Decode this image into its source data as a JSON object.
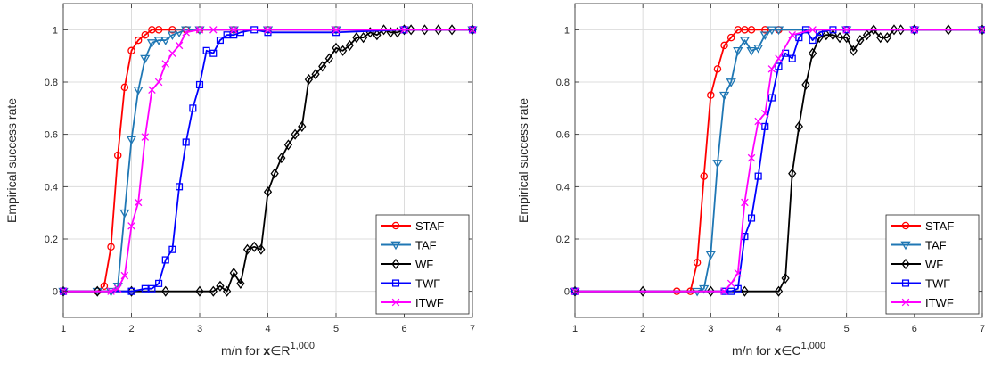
{
  "colors": {
    "STAF": "#ff0000",
    "TAF": "#1f77b4",
    "WF": "#000000",
    "TWF": "#0000ff",
    "ITWF": "#ff00ff"
  },
  "chart_data": [
    {
      "type": "line",
      "ylabel": "Empirical success rate",
      "xlabel_prefix": "m/n for ",
      "xlabel_var": "x",
      "xlabel_set": "∈R",
      "xlabel_sup": "1,000",
      "xlim": [
        1,
        7
      ],
      "ylim": [
        -0.1,
        1.1
      ],
      "xticks": [
        "1",
        "2",
        "3",
        "4",
        "5",
        "6",
        "7"
      ],
      "yticks": [
        "0",
        "0.2",
        "0.4",
        "0.6",
        "0.8",
        "1"
      ],
      "grid": true,
      "legend_position": "bottom-right",
      "series": [
        {
          "name": "STAF",
          "marker": "circle",
          "x": [
            1,
            1.5,
            1.6,
            1.7,
            1.8,
            1.9,
            2.0,
            2.1,
            2.2,
            2.3,
            2.4,
            2.6,
            2.8,
            3.0,
            3.5,
            4,
            5,
            6,
            7
          ],
          "y": [
            0,
            0,
            0.02,
            0.17,
            0.52,
            0.78,
            0.92,
            0.96,
            0.98,
            1,
            1,
            1,
            1,
            1,
            1,
            1,
            1,
            1,
            1
          ]
        },
        {
          "name": "TAF",
          "marker": "triangle",
          "x": [
            1,
            1.5,
            1.7,
            1.8,
            1.9,
            2.0,
            2.1,
            2.2,
            2.3,
            2.4,
            2.5,
            2.6,
            2.7,
            2.8,
            3.0,
            3.5,
            4,
            5,
            6,
            7
          ],
          "y": [
            0,
            0,
            0,
            0.02,
            0.3,
            0.58,
            0.77,
            0.89,
            0.95,
            0.96,
            0.96,
            0.98,
            0.99,
            1,
            1,
            1,
            1,
            1,
            1,
            1
          ]
        },
        {
          "name": "WF",
          "marker": "diamond",
          "x": [
            1,
            1.5,
            2,
            2.5,
            3.0,
            3.2,
            3.3,
            3.4,
            3.5,
            3.6,
            3.7,
            3.8,
            3.9,
            4.0,
            4.1,
            4.2,
            4.3,
            4.4,
            4.5,
            4.6,
            4.7,
            4.8,
            4.9,
            5.0,
            5.1,
            5.2,
            5.3,
            5.4,
            5.5,
            5.6,
            5.7,
            5.8,
            5.9,
            6.0,
            6.1,
            6.3,
            6.5,
            6.7,
            7.0
          ],
          "y": [
            0,
            0,
            0,
            0,
            0,
            0,
            0.02,
            0,
            0.07,
            0.03,
            0.16,
            0.17,
            0.16,
            0.38,
            0.45,
            0.51,
            0.56,
            0.6,
            0.63,
            0.81,
            0.83,
            0.86,
            0.89,
            0.93,
            0.92,
            0.94,
            0.97,
            0.97,
            0.99,
            0.98,
            1,
            0.99,
            0.99,
            1,
            1,
            1,
            1,
            1,
            1
          ]
        },
        {
          "name": "TWF",
          "marker": "square",
          "x": [
            1,
            2.0,
            2.2,
            2.3,
            2.4,
            2.5,
            2.6,
            2.7,
            2.8,
            2.9,
            3.0,
            3.1,
            3.2,
            3.3,
            3.4,
            3.5,
            3.6,
            3.8,
            4.0,
            5,
            6,
            7
          ],
          "y": [
            0,
            0,
            0.01,
            0.01,
            0.03,
            0.12,
            0.16,
            0.4,
            0.57,
            0.7,
            0.79,
            0.92,
            0.91,
            0.96,
            0.98,
            0.98,
            0.99,
            1,
            0.99,
            0.99,
            1,
            1
          ]
        },
        {
          "name": "ITWF",
          "marker": "x",
          "x": [
            1,
            1.7,
            1.8,
            1.9,
            2.0,
            2.1,
            2.2,
            2.3,
            2.4,
            2.5,
            2.6,
            2.7,
            2.8,
            3.0,
            3.2,
            3.5,
            4,
            5,
            6,
            7
          ],
          "y": [
            0,
            0,
            0.01,
            0.06,
            0.25,
            0.34,
            0.59,
            0.77,
            0.8,
            0.87,
            0.91,
            0.94,
            0.99,
            1,
            1,
            1,
            1,
            1,
            1,
            1
          ]
        }
      ]
    },
    {
      "type": "line",
      "ylabel": "Empirical success rate",
      "xlabel_prefix": "m/n for ",
      "xlabel_var": "x",
      "xlabel_set": "∈C",
      "xlabel_sup": "1,000",
      "xlim": [
        1,
        7
      ],
      "ylim": [
        -0.1,
        1.1
      ],
      "xticks": [
        "1",
        "2",
        "3",
        "4",
        "5",
        "6",
        "7"
      ],
      "yticks": [
        "0",
        "0.2",
        "0.4",
        "0.6",
        "0.8",
        "1"
      ],
      "grid": true,
      "legend_position": "bottom-right",
      "series": [
        {
          "name": "STAF",
          "marker": "circle",
          "x": [
            1,
            2.5,
            2.7,
            2.8,
            2.9,
            3.0,
            3.1,
            3.2,
            3.3,
            3.4,
            3.5,
            3.6,
            3.8,
            4.0,
            5,
            6,
            7
          ],
          "y": [
            0,
            0,
            0,
            0.11,
            0.44,
            0.75,
            0.85,
            0.94,
            0.97,
            1,
            1,
            1,
            1,
            1,
            1,
            1,
            1
          ]
        },
        {
          "name": "TAF",
          "marker": "triangle",
          "x": [
            1,
            2.8,
            2.9,
            3.0,
            3.1,
            3.2,
            3.3,
            3.4,
            3.5,
            3.6,
            3.7,
            3.8,
            3.9,
            4.0,
            5,
            6,
            7
          ],
          "y": [
            0,
            0,
            0.01,
            0.14,
            0.49,
            0.75,
            0.8,
            0.92,
            0.96,
            0.92,
            0.93,
            0.98,
            1,
            1,
            1,
            1,
            1
          ]
        },
        {
          "name": "WF",
          "marker": "diamond",
          "x": [
            1,
            2,
            3,
            3.5,
            4.0,
            4.1,
            4.2,
            4.3,
            4.4,
            4.5,
            4.6,
            4.7,
            4.8,
            4.9,
            5.0,
            5.1,
            5.2,
            5.3,
            5.4,
            5.5,
            5.6,
            5.7,
            5.8,
            6.0,
            6.5,
            7.0
          ],
          "y": [
            0,
            0,
            0,
            0,
            0,
            0.05,
            0.45,
            0.63,
            0.79,
            0.91,
            0.97,
            0.98,
            0.98,
            0.97,
            0.97,
            0.92,
            0.96,
            0.98,
            1,
            0.97,
            0.97,
            1,
            1,
            1,
            1,
            1
          ]
        },
        {
          "name": "TWF",
          "marker": "square",
          "x": [
            1,
            3.2,
            3.3,
            3.4,
            3.5,
            3.6,
            3.7,
            3.8,
            3.9,
            4.0,
            4.1,
            4.2,
            4.3,
            4.4,
            4.5,
            4.6,
            4.8,
            5,
            6,
            7
          ],
          "y": [
            0,
            0,
            0,
            0.01,
            0.21,
            0.28,
            0.44,
            0.63,
            0.74,
            0.86,
            0.91,
            0.89,
            0.97,
            1,
            0.96,
            0.99,
            1,
            1,
            1,
            1
          ]
        },
        {
          "name": "ITWF",
          "marker": "x",
          "x": [
            1,
            3.2,
            3.3,
            3.4,
            3.5,
            3.6,
            3.7,
            3.8,
            3.9,
            4.0,
            4.2,
            4.5,
            5,
            6,
            7
          ],
          "y": [
            0,
            0,
            0.03,
            0.07,
            0.34,
            0.51,
            0.65,
            0.68,
            0.85,
            0.89,
            0.98,
            1,
            1,
            1,
            1
          ]
        }
      ]
    }
  ]
}
